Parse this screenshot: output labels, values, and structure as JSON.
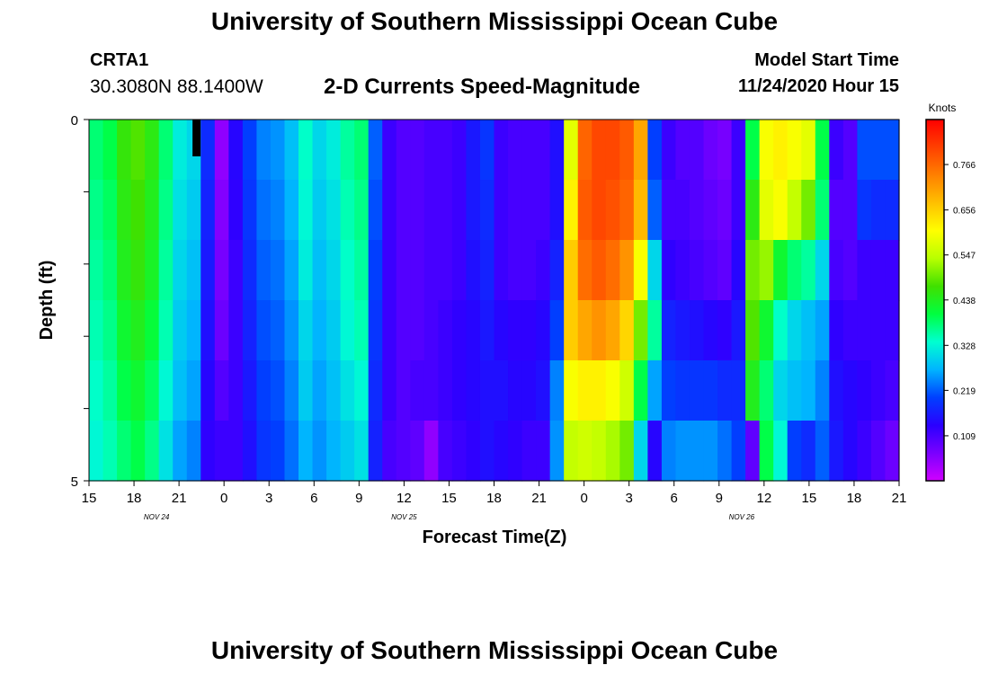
{
  "header": {
    "title": "University of Southern Mississippi Ocean Cube",
    "station_id": "CRTA1",
    "station_coords": "30.3080N 88.1400W",
    "subtitle": "2-D Currents Speed-Magnitude",
    "model_start_label": "Model Start Time",
    "model_start_value": "11/24/2020 Hour 15"
  },
  "footer": {
    "title": "University of Southern Mississippi Ocean Cube"
  },
  "chart_data": {
    "type": "heatmap",
    "title": "2-D Currents Speed-Magnitude",
    "xlabel": "Forecast Time(Z)",
    "ylabel": "Depth (ft)",
    "ylim": [
      0,
      5
    ],
    "y_tick_labels": [
      "0",
      "5"
    ],
    "x_tick_labels": [
      "15",
      "18",
      "21",
      "0",
      "3",
      "6",
      "9",
      "12",
      "15",
      "18",
      "21",
      "0",
      "3",
      "6",
      "9",
      "12",
      "15",
      "18",
      "21"
    ],
    "date_labels": [
      {
        "text": "NOV  24",
        "at_hour": 4.5
      },
      {
        "text": "NOV  25",
        "at_hour": 21
      },
      {
        "text": "NOV  26",
        "at_hour": 43.5
      }
    ],
    "x_range_hours": [
      0,
      54
    ],
    "hourly_speed_knots": {
      "layers_top_to_bottom": [
        [
          0.38,
          0.4,
          0.46,
          0.48,
          0.45,
          0.38,
          0.32,
          0.3,
          0.18,
          0.05,
          0.14,
          0.2,
          0.24,
          0.25,
          0.28,
          0.34,
          0.3,
          0.32,
          0.36,
          0.38,
          0.22,
          0.12,
          0.1,
          0.1,
          0.11,
          0.11,
          0.12,
          0.16,
          0.19,
          0.12,
          0.11,
          0.11,
          0.11,
          0.15,
          0.58,
          0.77,
          0.8,
          0.8,
          0.78,
          0.7,
          0.2,
          0.12,
          0.1,
          0.1,
          0.08,
          0.07,
          0.12,
          0.4,
          0.6,
          0.62,
          0.6,
          0.58,
          0.4,
          0.12,
          0.1,
          0.21,
          0.21,
          0.21
        ],
        [
          0.37,
          0.39,
          0.45,
          0.47,
          0.44,
          0.37,
          0.31,
          0.29,
          0.17,
          0.06,
          0.13,
          0.19,
          0.23,
          0.24,
          0.27,
          0.33,
          0.29,
          0.31,
          0.35,
          0.37,
          0.21,
          0.12,
          0.1,
          0.1,
          0.11,
          0.11,
          0.12,
          0.16,
          0.18,
          0.12,
          0.11,
          0.11,
          0.11,
          0.15,
          0.62,
          0.78,
          0.8,
          0.79,
          0.77,
          0.68,
          0.22,
          0.11,
          0.11,
          0.1,
          0.09,
          0.08,
          0.12,
          0.45,
          0.58,
          0.6,
          0.55,
          0.5,
          0.38,
          0.1,
          0.1,
          0.19,
          0.18,
          0.18
        ],
        [
          0.36,
          0.38,
          0.44,
          0.46,
          0.43,
          0.36,
          0.3,
          0.28,
          0.16,
          0.07,
          0.12,
          0.18,
          0.22,
          0.23,
          0.26,
          0.32,
          0.28,
          0.3,
          0.34,
          0.36,
          0.2,
          0.12,
          0.1,
          0.1,
          0.11,
          0.11,
          0.12,
          0.15,
          0.17,
          0.12,
          0.11,
          0.11,
          0.12,
          0.17,
          0.66,
          0.76,
          0.78,
          0.76,
          0.72,
          0.6,
          0.3,
          0.13,
          0.12,
          0.11,
          0.1,
          0.09,
          0.14,
          0.5,
          0.52,
          0.42,
          0.38,
          0.36,
          0.3,
          0.11,
          0.1,
          0.12,
          0.12,
          0.12
        ],
        [
          0.35,
          0.37,
          0.42,
          0.44,
          0.41,
          0.35,
          0.29,
          0.27,
          0.15,
          0.08,
          0.12,
          0.17,
          0.21,
          0.22,
          0.25,
          0.3,
          0.27,
          0.29,
          0.33,
          0.35,
          0.19,
          0.12,
          0.1,
          0.1,
          0.11,
          0.12,
          0.13,
          0.14,
          0.16,
          0.14,
          0.13,
          0.13,
          0.14,
          0.2,
          0.66,
          0.7,
          0.72,
          0.7,
          0.65,
          0.5,
          0.36,
          0.17,
          0.16,
          0.15,
          0.14,
          0.13,
          0.16,
          0.48,
          0.42,
          0.34,
          0.3,
          0.28,
          0.26,
          0.13,
          0.12,
          0.12,
          0.12,
          0.12
        ],
        [
          0.34,
          0.36,
          0.4,
          0.42,
          0.39,
          0.33,
          0.28,
          0.26,
          0.14,
          0.1,
          0.12,
          0.16,
          0.2,
          0.21,
          0.24,
          0.29,
          0.26,
          0.28,
          0.31,
          0.33,
          0.18,
          0.12,
          0.1,
          0.11,
          0.11,
          0.12,
          0.13,
          0.14,
          0.15,
          0.15,
          0.14,
          0.14,
          0.15,
          0.24,
          0.6,
          0.62,
          0.62,
          0.6,
          0.56,
          0.4,
          0.26,
          0.2,
          0.19,
          0.19,
          0.19,
          0.18,
          0.18,
          0.44,
          0.38,
          0.3,
          0.28,
          0.27,
          0.24,
          0.15,
          0.14,
          0.13,
          0.12,
          0.11
        ],
        [
          0.33,
          0.35,
          0.38,
          0.4,
          0.37,
          0.31,
          0.26,
          0.24,
          0.13,
          0.12,
          0.12,
          0.15,
          0.19,
          0.2,
          0.23,
          0.27,
          0.25,
          0.27,
          0.29,
          0.31,
          0.17,
          0.11,
          0.1,
          0.09,
          0.05,
          0.11,
          0.12,
          0.13,
          0.15,
          0.14,
          0.13,
          0.12,
          0.12,
          0.25,
          0.55,
          0.56,
          0.55,
          0.53,
          0.5,
          0.3,
          0.14,
          0.24,
          0.25,
          0.25,
          0.25,
          0.23,
          0.2,
          0.09,
          0.4,
          0.33,
          0.2,
          0.18,
          0.22,
          0.16,
          0.14,
          0.12,
          0.1,
          0.08
        ]
      ]
    },
    "colorbar": {
      "label": "Knots",
      "min": 0.0,
      "max": 0.875,
      "tick_values": [
        0.109,
        0.219,
        0.328,
        0.438,
        0.547,
        0.656,
        0.766
      ],
      "tick_labels": [
        "0.109",
        "0.219",
        "0.328",
        "0.438",
        "0.547",
        "0.656",
        "0.766"
      ],
      "colors": [
        "#d000ff",
        "#7a00ff",
        "#2a00ff",
        "#0040ff",
        "#00b4ff",
        "#00ffd0",
        "#00ff40",
        "#40e000",
        "#b8ff00",
        "#ffff00",
        "#ffc000",
        "#ff8000",
        "#ff4000",
        "#ff0000"
      ]
    }
  }
}
